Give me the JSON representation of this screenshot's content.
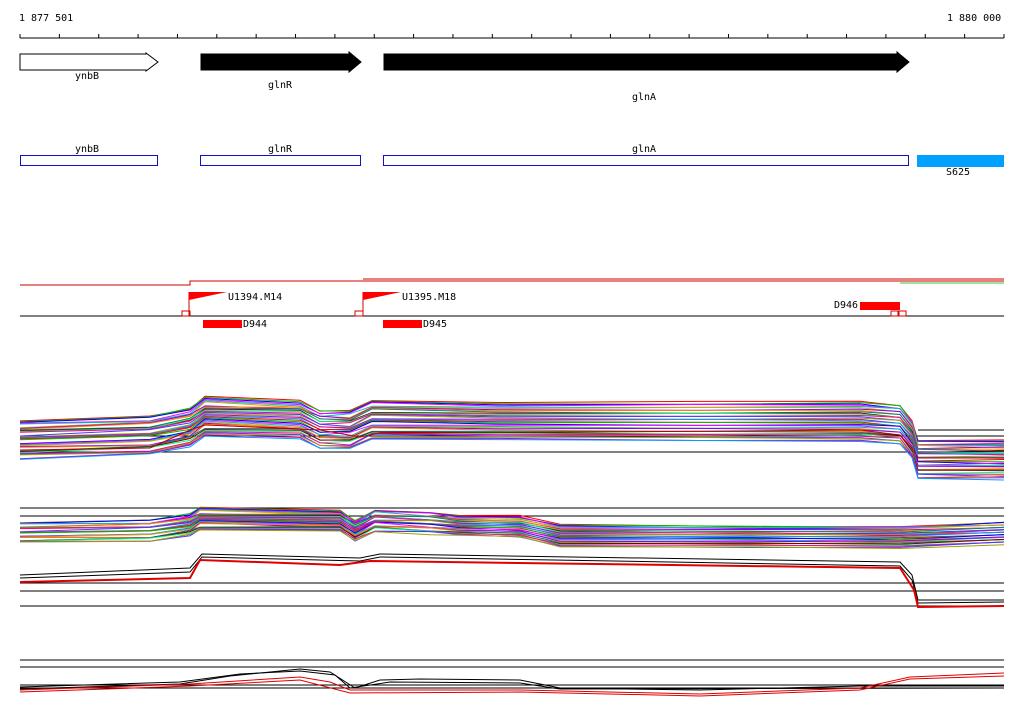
{
  "ruler": {
    "start": "1 877 501",
    "end": "1 880 000"
  },
  "genes": [
    {
      "name": "ynbB",
      "strand": "forward",
      "filled": false
    },
    {
      "name": "glnR",
      "strand": "forward",
      "filled": true
    },
    {
      "name": "glnA",
      "strand": "forward",
      "filled": true
    }
  ],
  "annotations": [
    {
      "name": "ynbB"
    },
    {
      "name": "glnR"
    },
    {
      "name": "glnA"
    },
    {
      "name": "S625",
      "color": "#00a0ff"
    }
  ],
  "features": {
    "promoters": [
      "U1394.M14",
      "U1395.M18"
    ],
    "blocks": [
      "D944",
      "D945",
      "D946"
    ],
    "color": "#ff0000"
  }
}
